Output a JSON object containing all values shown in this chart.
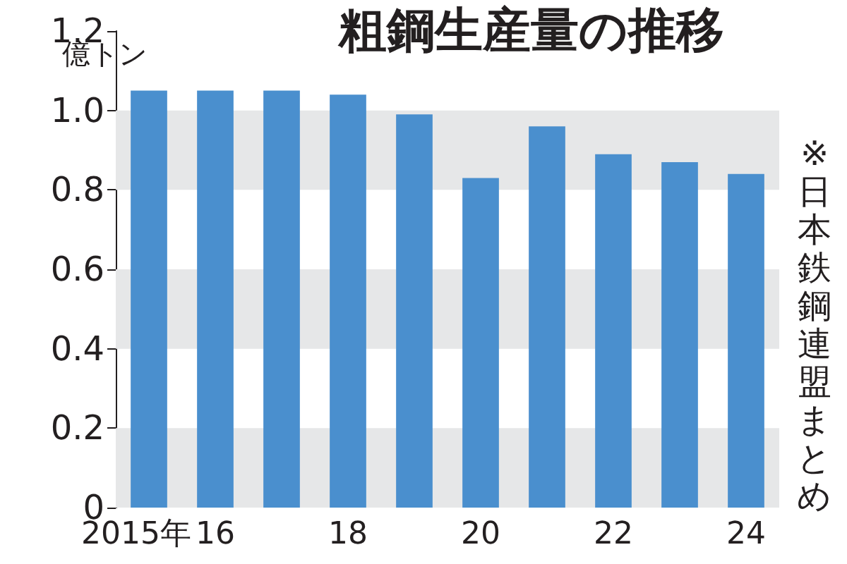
{
  "chart_data": {
    "type": "bar",
    "title": "粗鋼生産量の推移",
    "ylabel": "億トン",
    "annotations": [
      "※日本鉄鋼連盟まとめ"
    ],
    "categories": [
      "2015年",
      "16",
      null,
      "18",
      null,
      "20",
      null,
      "22",
      null,
      "24"
    ],
    "values": [
      1.05,
      1.05,
      1.05,
      1.04,
      0.99,
      0.83,
      0.96,
      0.89,
      0.87,
      0.84
    ],
    "color": "#4a8fce",
    "ylim": [
      0,
      1.2
    ],
    "yticks": [
      0,
      0.2,
      0.4,
      0.6,
      0.8,
      {
        "value": 1,
        "label": "1.0"
      },
      1.2
    ],
    "bands": [
      {
        "axis": "y",
        "from": 0,
        "to": 0.2,
        "color": "#e6e7e8"
      },
      {
        "axis": "y",
        "from": 0.4,
        "to": 0.6,
        "color": "#e6e7e8"
      },
      {
        "axis": "y",
        "from": 0.8,
        "to": 1,
        "color": "#e6e7e8"
      }
    ],
    "grid": false
  }
}
